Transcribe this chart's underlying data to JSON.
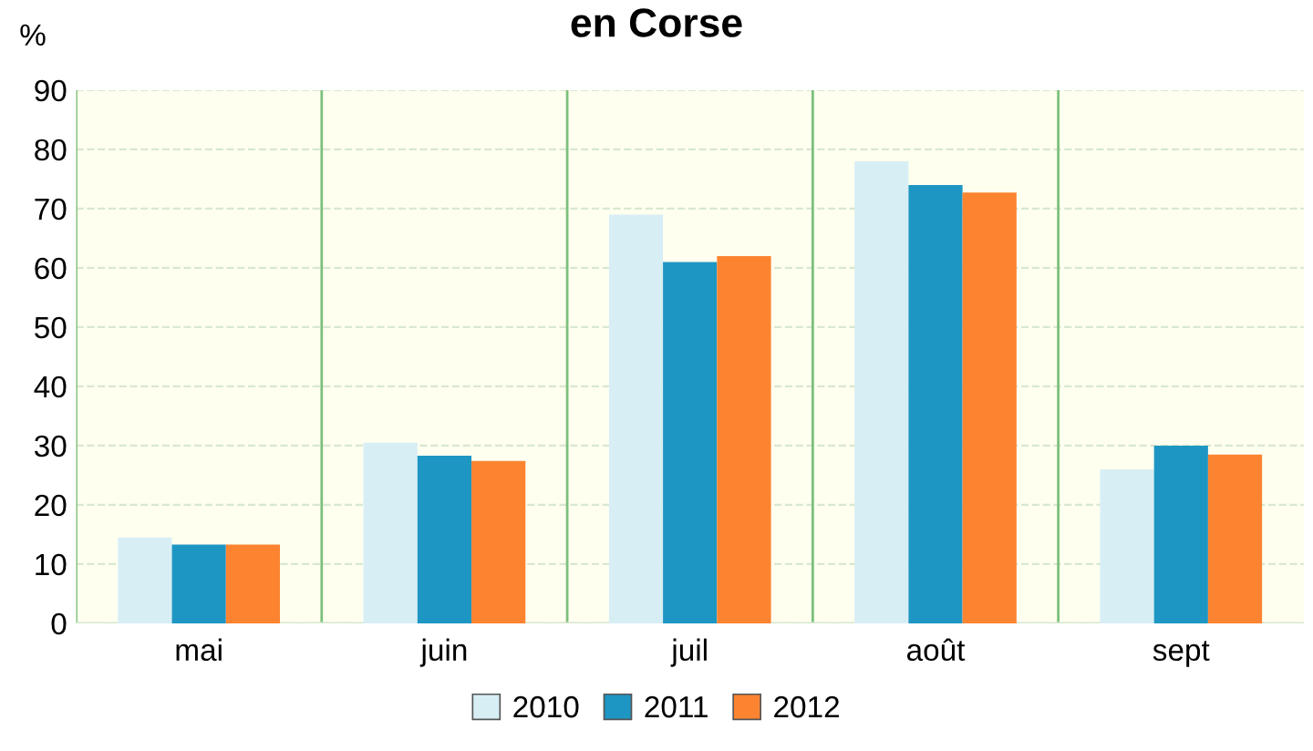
{
  "chart_data": {
    "type": "bar",
    "title": "en Corse",
    "ylabel": "%",
    "categories": [
      "mai",
      "juin",
      "juil",
      "août",
      "sept"
    ],
    "series": [
      {
        "name": "2010",
        "color": "#d8eef5",
        "values": [
          14.5,
          30.5,
          69,
          78,
          26
        ]
      },
      {
        "name": "2011",
        "color": "#1e96c4",
        "values": [
          13.3,
          28.3,
          61,
          74,
          30
        ]
      },
      {
        "name": "2012",
        "color": "#fc8431",
        "values": [
          13.3,
          27.4,
          62,
          72.7,
          28.5
        ]
      }
    ],
    "ylim": [
      0,
      90
    ],
    "yticks": [
      0,
      10,
      20,
      30,
      40,
      50,
      60,
      70,
      80,
      90
    ],
    "grid": true,
    "legend": "bottom"
  }
}
